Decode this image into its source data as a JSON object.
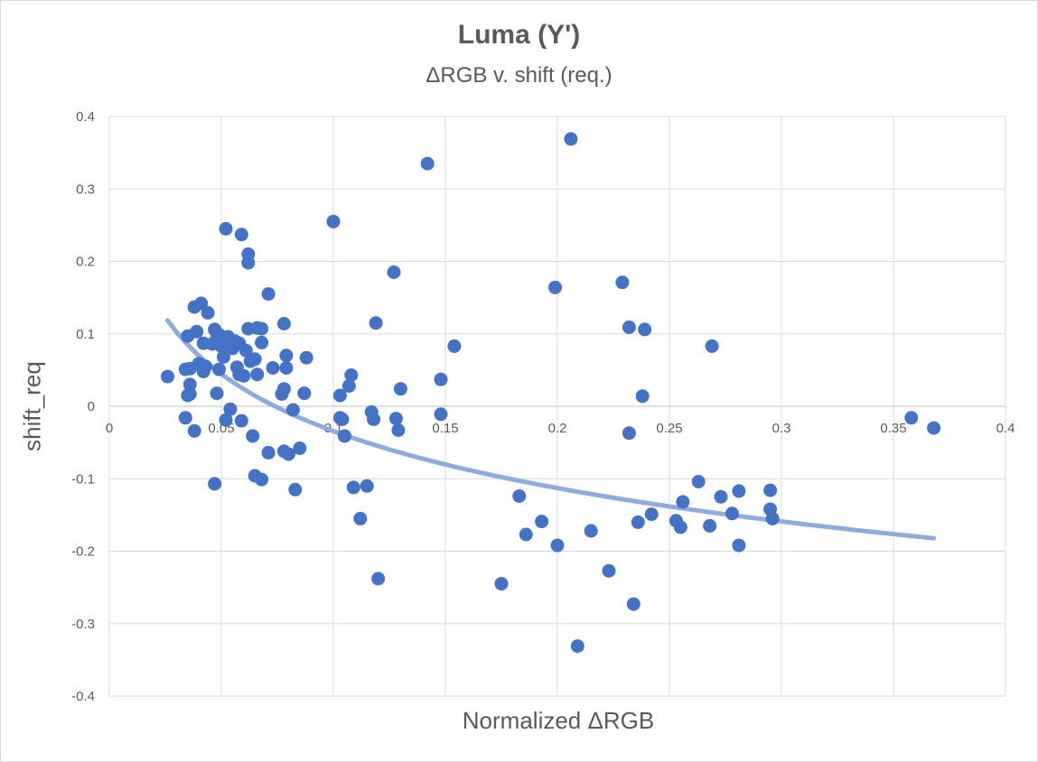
{
  "chart_data": {
    "type": "scatter",
    "title": "Luma (Y')",
    "subtitle": "ΔRGB v. shift (req.)",
    "xlabel": "Normalized ΔRGB",
    "ylabel": "shift_req",
    "xlim": [
      0,
      0.4
    ],
    "ylim": [
      -0.4,
      0.4
    ],
    "x_ticks": [
      0,
      0.05,
      0.1,
      0.15,
      0.2,
      0.25,
      0.3,
      0.35,
      0.4
    ],
    "x_tick_labels": [
      "0",
      "0.05",
      "0.1",
      "0.15",
      "0.2",
      "0.25",
      "0.3",
      "0.35",
      "0.4"
    ],
    "y_ticks": [
      -0.4,
      -0.3,
      -0.2,
      -0.1,
      0,
      0.1,
      0.2,
      0.3,
      0.4
    ],
    "y_tick_labels": [
      "-0.4",
      "-0.3",
      "-0.2",
      "-0.1",
      "0",
      "0.1",
      "0.2",
      "0.3",
      "0.4"
    ],
    "grid": true,
    "colors": {
      "points": "#4472c4",
      "trendline": "#8faadc"
    },
    "series": [
      {
        "points": [
          [
            0.026,
            0.041
          ],
          [
            0.034,
            0.051
          ],
          [
            0.034,
            -0.016
          ],
          [
            0.035,
            0.015
          ],
          [
            0.035,
            0.097
          ],
          [
            0.036,
            0.052
          ],
          [
            0.036,
            0.017
          ],
          [
            0.036,
            0.03
          ],
          [
            0.038,
            0.137
          ],
          [
            0.038,
            -0.034
          ],
          [
            0.039,
            0.103
          ],
          [
            0.04,
            0.059
          ],
          [
            0.041,
            0.142
          ],
          [
            0.042,
            0.048
          ],
          [
            0.042,
            0.087
          ],
          [
            0.043,
            0.055
          ],
          [
            0.044,
            0.129
          ],
          [
            0.046,
            0.086
          ],
          [
            0.047,
            0.106
          ],
          [
            0.047,
            -0.107
          ],
          [
            0.048,
            0.018
          ],
          [
            0.048,
            0.094
          ],
          [
            0.049,
            0.051
          ],
          [
            0.049,
            0.099
          ],
          [
            0.05,
            0.083
          ],
          [
            0.051,
            0.068
          ],
          [
            0.052,
            -0.019
          ],
          [
            0.052,
            0.245
          ],
          [
            0.053,
            0.096
          ],
          [
            0.054,
            -0.004
          ],
          [
            0.055,
            0.08
          ],
          [
            0.056,
            0.09
          ],
          [
            0.057,
            0.054
          ],
          [
            0.058,
            0.044
          ],
          [
            0.058,
            0.087
          ],
          [
            0.059,
            0.237
          ],
          [
            0.059,
            -0.02
          ],
          [
            0.06,
            0.042
          ],
          [
            0.061,
            0.077
          ],
          [
            0.062,
            0.198
          ],
          [
            0.062,
            0.21
          ],
          [
            0.062,
            0.107
          ],
          [
            0.063,
            0.062
          ],
          [
            0.064,
            -0.041
          ],
          [
            0.065,
            0.065
          ],
          [
            0.065,
            -0.096
          ],
          [
            0.066,
            0.044
          ],
          [
            0.066,
            0.108
          ],
          [
            0.068,
            0.107
          ],
          [
            0.068,
            0.088
          ],
          [
            0.068,
            -0.101
          ],
          [
            0.071,
            -0.064
          ],
          [
            0.071,
            0.155
          ],
          [
            0.073,
            0.053
          ],
          [
            0.077,
            0.017
          ],
          [
            0.078,
            0.114
          ],
          [
            0.078,
            -0.062
          ],
          [
            0.078,
            0.024
          ],
          [
            0.079,
            0.07
          ],
          [
            0.079,
            0.053
          ],
          [
            0.08,
            -0.066
          ],
          [
            0.082,
            -0.005
          ],
          [
            0.083,
            -0.115
          ],
          [
            0.085,
            -0.058
          ],
          [
            0.087,
            0.018
          ],
          [
            0.088,
            0.067
          ],
          [
            0.1,
            0.255
          ],
          [
            0.103,
            0.015
          ],
          [
            0.103,
            -0.016
          ],
          [
            0.104,
            -0.018
          ],
          [
            0.105,
            -0.041
          ],
          [
            0.107,
            0.028
          ],
          [
            0.108,
            0.043
          ],
          [
            0.109,
            -0.112
          ],
          [
            0.112,
            -0.155
          ],
          [
            0.115,
            -0.11
          ],
          [
            0.117,
            -0.008
          ],
          [
            0.118,
            -0.018
          ],
          [
            0.119,
            0.115
          ],
          [
            0.12,
            -0.238
          ],
          [
            0.127,
            0.185
          ],
          [
            0.128,
            -0.017
          ],
          [
            0.129,
            -0.033
          ],
          [
            0.13,
            0.024
          ],
          [
            0.142,
            0.335
          ],
          [
            0.148,
            0.037
          ],
          [
            0.148,
            -0.011
          ],
          [
            0.154,
            0.083
          ],
          [
            0.175,
            -0.245
          ],
          [
            0.183,
            -0.124
          ],
          [
            0.186,
            -0.177
          ],
          [
            0.193,
            -0.159
          ],
          [
            0.199,
            0.164
          ],
          [
            0.2,
            -0.192
          ],
          [
            0.206,
            0.369
          ],
          [
            0.209,
            -0.331
          ],
          [
            0.215,
            -0.172
          ],
          [
            0.223,
            -0.227
          ],
          [
            0.229,
            0.171
          ],
          [
            0.232,
            0.109
          ],
          [
            0.232,
            -0.037
          ],
          [
            0.234,
            -0.273
          ],
          [
            0.236,
            -0.16
          ],
          [
            0.238,
            0.014
          ],
          [
            0.239,
            0.106
          ],
          [
            0.242,
            -0.149
          ],
          [
            0.253,
            -0.158
          ],
          [
            0.255,
            -0.167
          ],
          [
            0.256,
            -0.132
          ],
          [
            0.263,
            -0.104
          ],
          [
            0.268,
            -0.165
          ],
          [
            0.269,
            0.083
          ],
          [
            0.273,
            -0.125
          ],
          [
            0.278,
            -0.148
          ],
          [
            0.281,
            -0.117
          ],
          [
            0.281,
            -0.192
          ],
          [
            0.295,
            -0.116
          ],
          [
            0.295,
            -0.142
          ],
          [
            0.296,
            -0.155
          ],
          [
            0.358,
            -0.016
          ],
          [
            0.368,
            -0.03
          ]
        ]
      }
    ],
    "trendline": {
      "type": "logarithmic",
      "equation": {
        "a": -0.1135,
        "b": -0.2956
      },
      "x_range": [
        0.026,
        0.368
      ]
    }
  }
}
